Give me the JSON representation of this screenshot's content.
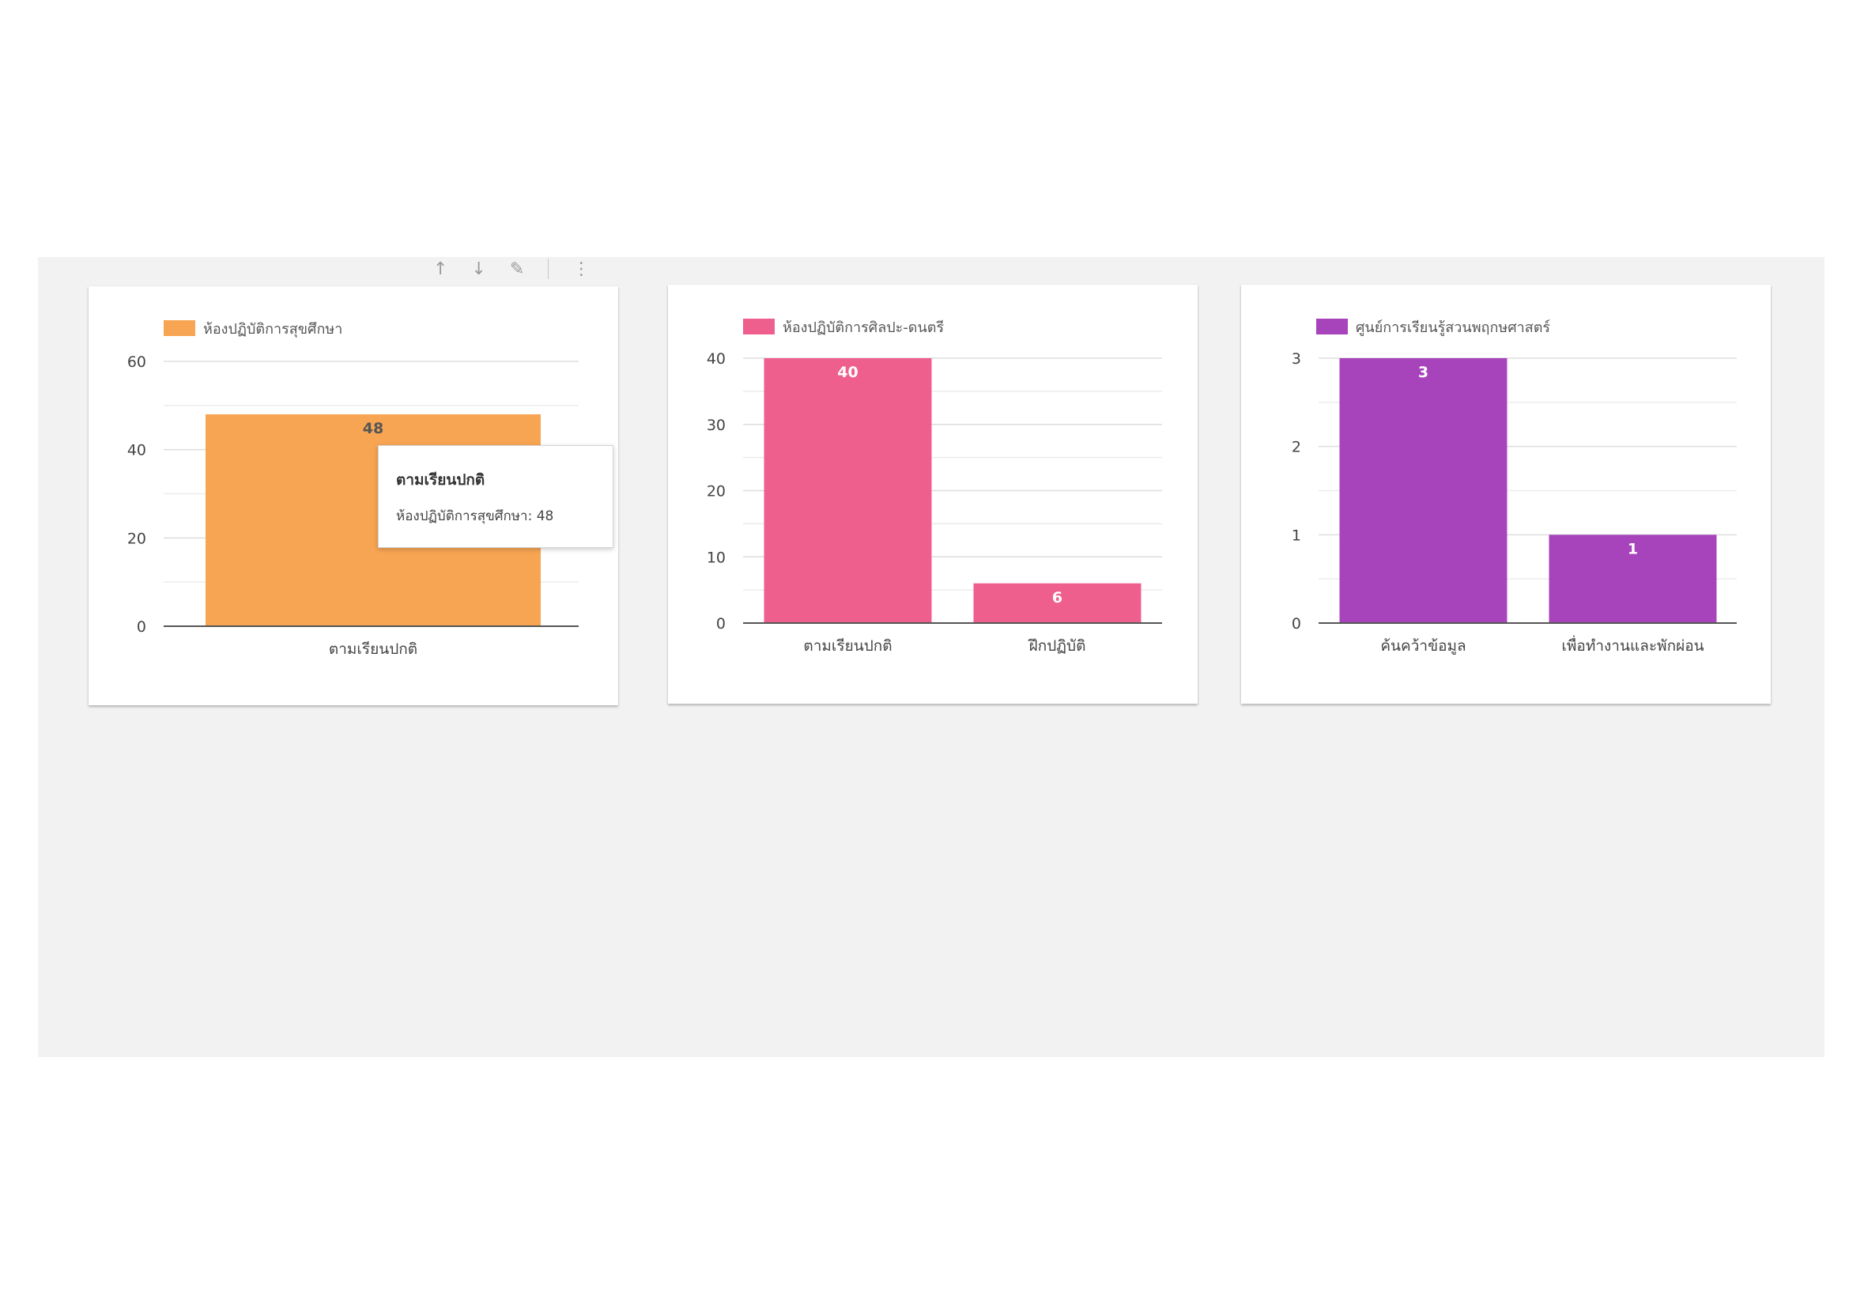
{
  "toolbar": {
    "icons": [
      "arrow-up-icon",
      "arrow-down-icon",
      "pen-icon",
      "more-vert-icon"
    ],
    "glyphs": [
      "↑",
      "↓",
      "✎",
      "⋮"
    ]
  },
  "tooltip": {
    "category": "ตามเรียนปกติ",
    "series": "ห้องปฏิบัติการสุขศึกษา",
    "value": "48",
    "separator": ": "
  },
  "chart_data": [
    {
      "type": "bar",
      "legend_position": "top-left",
      "grid": true,
      "ylim": [
        0,
        60
      ],
      "yticks": [
        0,
        20,
        40,
        60
      ],
      "categories": [
        "ตามเรียนปกติ"
      ],
      "series": [
        {
          "name": "ห้องปฏิบัติการสุขศึกษา",
          "values": [
            48
          ],
          "color": "#f7a553"
        }
      ],
      "data_label_color": "#555555"
    },
    {
      "type": "bar",
      "legend_position": "top-left",
      "grid": true,
      "ylim": [
        0,
        40
      ],
      "yticks": [
        0,
        10,
        20,
        30,
        40
      ],
      "categories": [
        "ตามเรียนปกติ",
        "ฝึกปฏิบัติ"
      ],
      "series": [
        {
          "name": "ห้องปฏิบัติการศิลปะ-ดนตรี",
          "values": [
            40,
            6
          ],
          "color": "#ef5f8e"
        }
      ],
      "data_label_color": "#ffffff"
    },
    {
      "type": "bar",
      "legend_position": "top-left",
      "grid": true,
      "ylim": [
        0,
        3
      ],
      "yticks": [
        0,
        1,
        2,
        3
      ],
      "categories": [
        "ค้นคว้าข้อมูล",
        "เพื่อทำงานและพักผ่อน"
      ],
      "series": [
        {
          "name": "ศูนย์การเรียนรู้สวนพฤกษศาสตร์",
          "values": [
            3,
            1
          ],
          "color": "#a844bb"
        }
      ],
      "data_label_color": "#ffffff"
    }
  ]
}
